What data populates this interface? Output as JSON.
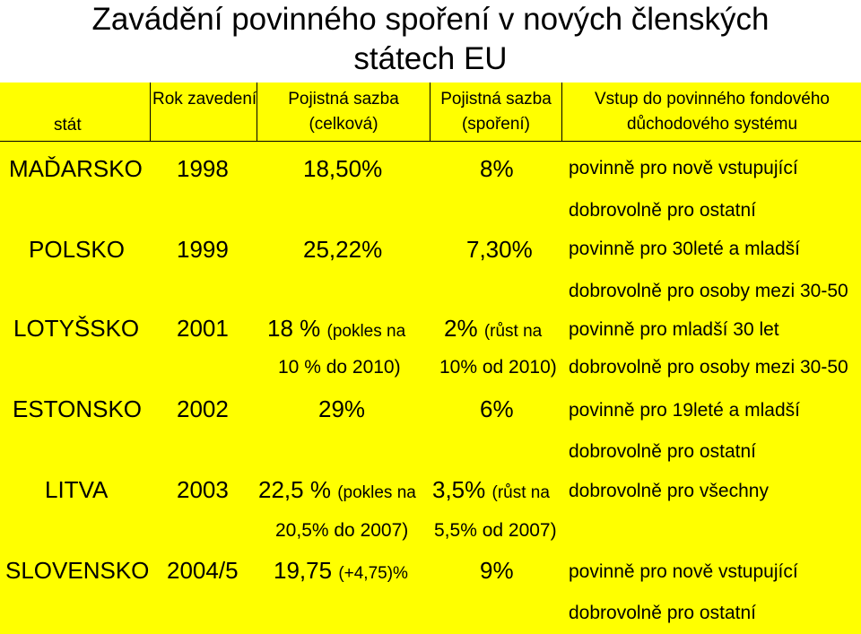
{
  "title": {
    "line1": "Zavádění povinného spoření v nových členských",
    "line2": "státech EU"
  },
  "headers": {
    "country": "stát",
    "year": "Rok zavedení",
    "total_rate_1": "Pojistná sazba",
    "total_rate_2": "(celková)",
    "savings_rate_1": "Pojistná sazba",
    "savings_rate_2": "(spoření)",
    "entry_1": "Vstup do povinného fondového",
    "entry_2": "důchodového systému"
  },
  "rows": [
    {
      "country": "MAĎARSKO",
      "year": "1998",
      "total": "18,50%",
      "savings": "8%",
      "entry1": "povinně pro nově vstupující",
      "entry2": "dobrovolně pro ostatní"
    },
    {
      "country": "POLSKO",
      "year": "1999",
      "total": "25,22%",
      "savings": "7,30%",
      "entry1": "povinně pro 30leté a mladší",
      "entry2": "dobrovolně pro osoby mezi 30-50"
    },
    {
      "country": "LOTYŠSKO",
      "year": "2001",
      "total_main": "18 %",
      "total_note": "(pokles na",
      "total_line2": "10 % do 2010)",
      "savings_main": "2%",
      "savings_note": "(růst na",
      "savings_line2": "10% od 2010)",
      "entry1": "povinně pro mladší 30 let",
      "entry2": "dobrovolně pro osoby mezi 30-50"
    },
    {
      "country": "ESTONSKO",
      "year": "2002",
      "total": "29%",
      "savings": "6%",
      "entry1": "povinně pro 19leté a mladší",
      "entry2": "dobrovolně pro ostatní"
    },
    {
      "country": "LITVA",
      "year": "2003",
      "total_main": "22,5 %",
      "total_note": "(pokles na",
      "total_line2": "20,5% do 2007)",
      "savings_main": "3,5%",
      "savings_note": "(růst na",
      "savings_line2": "5,5% od 2007)",
      "entry1": "dobrovolně pro všechny"
    },
    {
      "country": "SLOVENSKO",
      "year": "2004/5",
      "total_main": "19,75",
      "total_note": "(+4,75)%",
      "savings": "9%",
      "entry1": "povinně pro nově vstupující",
      "entry2": "dobrovolně pro ostatní"
    }
  ]
}
